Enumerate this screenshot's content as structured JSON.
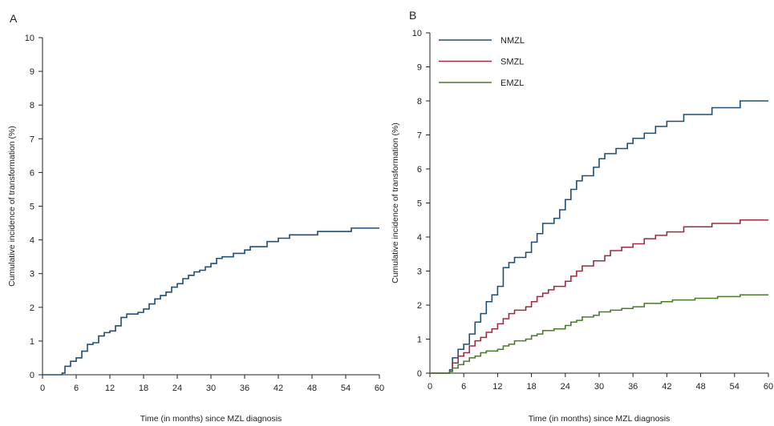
{
  "chart_data": [
    {
      "panel_label": "A",
      "type": "line",
      "step": true,
      "xlabel": "Time (in months) since MZL diagnosis",
      "ylabel": "Cumulative incidence of transformation (%)",
      "xlim": [
        0,
        60
      ],
      "ylim": [
        0,
        10
      ],
      "x_ticks": [
        0,
        6,
        12,
        18,
        24,
        30,
        36,
        42,
        48,
        54,
        60
      ],
      "y_ticks": [
        0,
        1,
        2,
        3,
        4,
        5,
        6,
        7,
        8,
        9,
        10
      ],
      "grid": false,
      "legend": null,
      "series": [
        {
          "color": "#1f4e79",
          "points": [
            [
              0,
              0
            ],
            [
              3.5,
              0.05
            ],
            [
              4,
              0.25
            ],
            [
              5,
              0.4
            ],
            [
              6,
              0.5
            ],
            [
              7,
              0.7
            ],
            [
              8,
              0.9
            ],
            [
              9,
              0.95
            ],
            [
              10,
              1.15
            ],
            [
              11,
              1.25
            ],
            [
              12,
              1.3
            ],
            [
              13,
              1.45
            ],
            [
              14,
              1.7
            ],
            [
              15,
              1.8
            ],
            [
              17,
              1.85
            ],
            [
              18,
              1.95
            ],
            [
              19,
              2.1
            ],
            [
              20,
              2.25
            ],
            [
              21,
              2.35
            ],
            [
              22,
              2.45
            ],
            [
              23,
              2.6
            ],
            [
              24,
              2.7
            ],
            [
              25,
              2.85
            ],
            [
              26,
              2.95
            ],
            [
              27,
              3.05
            ],
            [
              28,
              3.1
            ],
            [
              29,
              3.2
            ],
            [
              30,
              3.3
            ],
            [
              31,
              3.45
            ],
            [
              32,
              3.5
            ],
            [
              34,
              3.6
            ],
            [
              36,
              3.7
            ],
            [
              37,
              3.8
            ],
            [
              40,
              3.95
            ],
            [
              42,
              4.05
            ],
            [
              44,
              4.15
            ],
            [
              48,
              4.15
            ],
            [
              49,
              4.25
            ],
            [
              55,
              4.35
            ],
            [
              60,
              4.35
            ]
          ]
        }
      ]
    },
    {
      "panel_label": "B",
      "type": "line",
      "step": true,
      "xlabel": "Time (in months) since MZL diagnosis",
      "ylabel": "Cumulative incidence of transformation (%)",
      "xlim": [
        0,
        60
      ],
      "ylim": [
        0,
        10
      ],
      "x_ticks": [
        0,
        6,
        12,
        18,
        24,
        30,
        36,
        42,
        48,
        54,
        60
      ],
      "y_ticks": [
        0,
        1,
        2,
        3,
        4,
        5,
        6,
        7,
        8,
        9,
        10
      ],
      "grid": false,
      "legend": "top-left",
      "series": [
        {
          "name": "NMZL",
          "color": "#1f4e79",
          "points": [
            [
              0,
              0
            ],
            [
              3.5,
              0.1
            ],
            [
              4,
              0.45
            ],
            [
              5,
              0.7
            ],
            [
              6,
              0.85
            ],
            [
              7,
              1.15
            ],
            [
              8,
              1.5
            ],
            [
              9,
              1.75
            ],
            [
              10,
              2.1
            ],
            [
              11,
              2.3
            ],
            [
              12,
              2.55
            ],
            [
              13,
              3.1
            ],
            [
              14,
              3.25
            ],
            [
              15,
              3.4
            ],
            [
              17,
              3.55
            ],
            [
              18,
              3.85
            ],
            [
              19,
              4.1
            ],
            [
              20,
              4.4
            ],
            [
              22,
              4.55
            ],
            [
              23,
              4.8
            ],
            [
              24,
              5.1
            ],
            [
              25,
              5.4
            ],
            [
              26,
              5.65
            ],
            [
              27,
              5.8
            ],
            [
              29,
              6.05
            ],
            [
              30,
              6.3
            ],
            [
              31,
              6.45
            ],
            [
              33,
              6.6
            ],
            [
              35,
              6.75
            ],
            [
              36,
              6.9
            ],
            [
              38,
              7.05
            ],
            [
              40,
              7.25
            ],
            [
              42,
              7.4
            ],
            [
              45,
              7.6
            ],
            [
              50,
              7.8
            ],
            [
              55,
              8.0
            ],
            [
              60,
              8.0
            ]
          ]
        },
        {
          "name": "SMZL",
          "color": "#a02b3f",
          "points": [
            [
              0,
              0
            ],
            [
              3.5,
              0.05
            ],
            [
              4,
              0.3
            ],
            [
              5,
              0.5
            ],
            [
              6,
              0.6
            ],
            [
              7,
              0.8
            ],
            [
              8,
              0.95
            ],
            [
              9,
              1.05
            ],
            [
              10,
              1.2
            ],
            [
              11,
              1.3
            ],
            [
              12,
              1.45
            ],
            [
              13,
              1.6
            ],
            [
              14,
              1.75
            ],
            [
              15,
              1.85
            ],
            [
              17,
              1.95
            ],
            [
              18,
              2.1
            ],
            [
              19,
              2.25
            ],
            [
              20,
              2.35
            ],
            [
              21,
              2.45
            ],
            [
              22,
              2.55
            ],
            [
              24,
              2.7
            ],
            [
              25,
              2.85
            ],
            [
              26,
              3.0
            ],
            [
              27,
              3.15
            ],
            [
              29,
              3.3
            ],
            [
              31,
              3.45
            ],
            [
              32,
              3.6
            ],
            [
              34,
              3.7
            ],
            [
              36,
              3.8
            ],
            [
              38,
              3.95
            ],
            [
              40,
              4.05
            ],
            [
              42,
              4.15
            ],
            [
              45,
              4.3
            ],
            [
              50,
              4.4
            ],
            [
              55,
              4.5
            ],
            [
              60,
              4.5
            ]
          ]
        },
        {
          "name": "EMZL",
          "color": "#4a7a2c",
          "points": [
            [
              0,
              0
            ],
            [
              3.5,
              0.05
            ],
            [
              4,
              0.15
            ],
            [
              5,
              0.25
            ],
            [
              6,
              0.35
            ],
            [
              7,
              0.45
            ],
            [
              8,
              0.5
            ],
            [
              9,
              0.6
            ],
            [
              10,
              0.65
            ],
            [
              12,
              0.7
            ],
            [
              13,
              0.8
            ],
            [
              14,
              0.85
            ],
            [
              15,
              0.95
            ],
            [
              17,
              1.0
            ],
            [
              18,
              1.1
            ],
            [
              19,
              1.15
            ],
            [
              20,
              1.25
            ],
            [
              22,
              1.3
            ],
            [
              24,
              1.4
            ],
            [
              25,
              1.5
            ],
            [
              26,
              1.55
            ],
            [
              27,
              1.65
            ],
            [
              29,
              1.7
            ],
            [
              30,
              1.8
            ],
            [
              32,
              1.85
            ],
            [
              34,
              1.9
            ],
            [
              36,
              1.95
            ],
            [
              38,
              2.05
            ],
            [
              41,
              2.1
            ],
            [
              43,
              2.15
            ],
            [
              47,
              2.2
            ],
            [
              51,
              2.25
            ],
            [
              55,
              2.3
            ],
            [
              60,
              2.3
            ]
          ]
        }
      ]
    }
  ]
}
